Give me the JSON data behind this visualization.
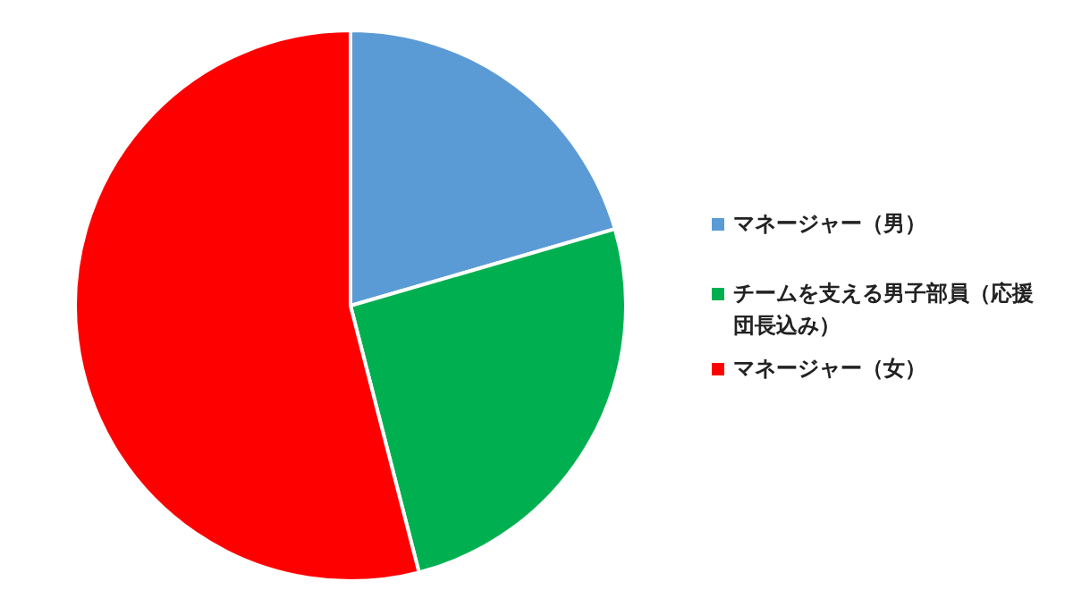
{
  "chart_data": {
    "type": "pie",
    "categories": [
      "マネージャー（男）",
      "チームを支える男子部員（応援団長込み）",
      "マネージャー（女）"
    ],
    "values": [
      20.5,
      25.5,
      54
    ],
    "colors": [
      "#5b9bd5",
      "#00b050",
      "#ff0000"
    ],
    "legend": "right"
  }
}
